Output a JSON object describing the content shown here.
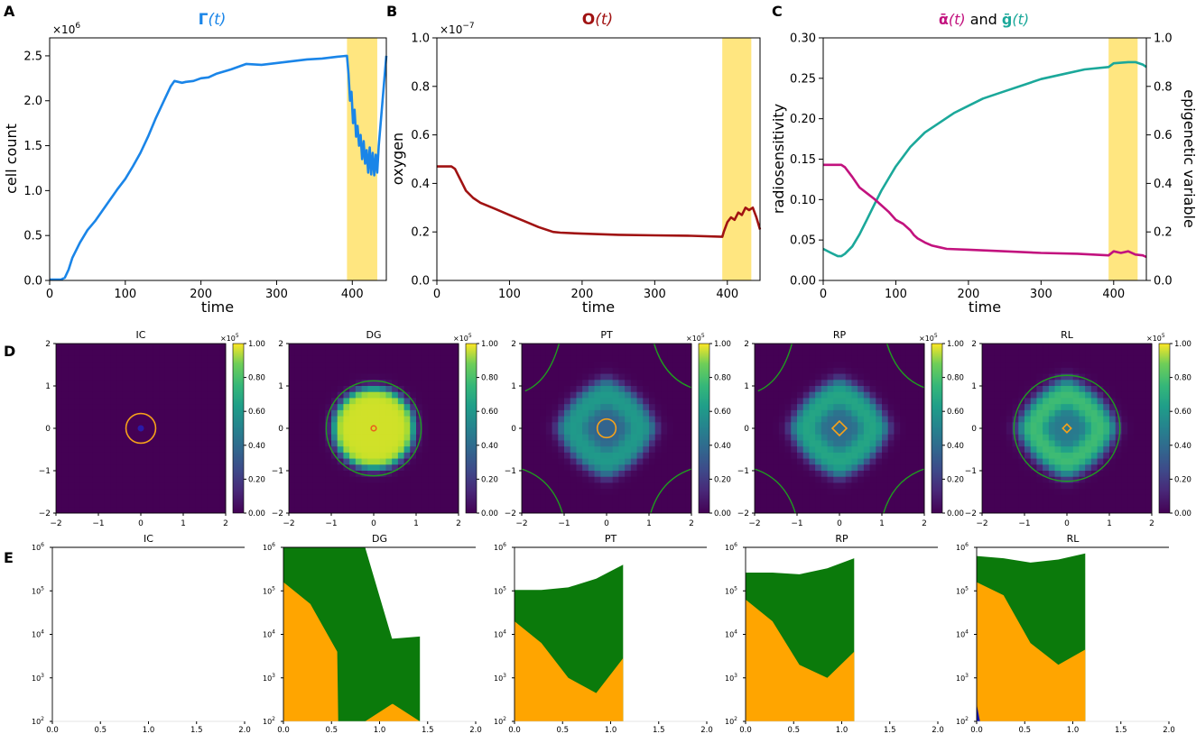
{
  "colors": {
    "gamma": "#1a85e8",
    "oxygen": "#a01212",
    "alpha": "#c2127e",
    "g": "#1ba89a",
    "shade": "#ffe680",
    "contour_orange": "#f7a21a",
    "contour_green": "#1f9e1f",
    "area_orange": "#ffa500",
    "area_green": "#0b7a0b",
    "area_blue": "#1414b4"
  },
  "chart_data": [
    {
      "panel": "A",
      "type": "line",
      "title_main": "Γ",
      "title_arg": "(t)",
      "xlabel": "time",
      "ylabel": "cell count",
      "offset_base": "×10",
      "offset_exp": "6",
      "xlim": [
        0,
        445
      ],
      "ylim": [
        0,
        2.7
      ],
      "xticks": [
        0,
        100,
        200,
        300,
        400
      ],
      "yticks": [
        "0.0",
        "0.5",
        "1.0",
        "1.5",
        "2.0",
        "2.5"
      ],
      "shade": [
        393,
        433
      ],
      "series": [
        {
          "name": "Γ(t)",
          "x": [
            0,
            15,
            20,
            25,
            30,
            40,
            50,
            60,
            70,
            80,
            90,
            100,
            110,
            120,
            130,
            140,
            150,
            160,
            165,
            170,
            175,
            180,
            190,
            200,
            210,
            220,
            240,
            260,
            280,
            300,
            320,
            340,
            360,
            380,
            393,
            395,
            397,
            399,
            401,
            403,
            405,
            407,
            409,
            411,
            413,
            415,
            417,
            419,
            421,
            423,
            425,
            427,
            429,
            431,
            433,
            435,
            437,
            440,
            445
          ],
          "y": [
            0.01,
            0.01,
            0.03,
            0.12,
            0.25,
            0.42,
            0.56,
            0.66,
            0.78,
            0.9,
            1.02,
            1.13,
            1.27,
            1.42,
            1.6,
            1.8,
            1.98,
            2.16,
            2.22,
            2.21,
            2.2,
            2.21,
            2.22,
            2.25,
            2.26,
            2.3,
            2.35,
            2.41,
            2.4,
            2.42,
            2.44,
            2.46,
            2.47,
            2.49,
            2.5,
            2.3,
            2.0,
            2.1,
            1.75,
            1.9,
            1.6,
            1.72,
            1.5,
            1.62,
            1.35,
            1.55,
            1.3,
            1.45,
            1.2,
            1.48,
            1.18,
            1.42,
            1.17,
            1.4,
            1.2,
            1.5,
            1.7,
            2.0,
            2.5
          ]
        }
      ]
    },
    {
      "panel": "B",
      "type": "line",
      "title_main": "O",
      "title_arg": "(t)",
      "xlabel": "time",
      "ylabel": "oxygen",
      "offset_base": "×10",
      "offset_exp": "−7",
      "xlim": [
        0,
        445
      ],
      "ylim": [
        0,
        1.0
      ],
      "xticks": [
        0,
        100,
        200,
        300,
        400
      ],
      "yticks": [
        "0.0",
        "0.2",
        "0.4",
        "0.6",
        "0.8",
        "1.0"
      ],
      "shade": [
        393,
        433
      ],
      "series": [
        {
          "name": "O(t)",
          "x": [
            0,
            20,
            25,
            30,
            35,
            40,
            50,
            60,
            80,
            100,
            120,
            140,
            160,
            170,
            200,
            250,
            300,
            350,
            393,
            395,
            400,
            405,
            410,
            415,
            420,
            425,
            430,
            435,
            440,
            445
          ],
          "y": [
            0.47,
            0.47,
            0.46,
            0.43,
            0.4,
            0.37,
            0.34,
            0.32,
            0.295,
            0.27,
            0.245,
            0.22,
            0.2,
            0.197,
            0.193,
            0.188,
            0.186,
            0.184,
            0.18,
            0.2,
            0.24,
            0.26,
            0.25,
            0.28,
            0.27,
            0.3,
            0.29,
            0.3,
            0.26,
            0.21
          ]
        }
      ]
    },
    {
      "panel": "C",
      "type": "line",
      "title_a": "ᾱ",
      "title_mid": "(t) and ",
      "title_b": "ḡ",
      "title_end": "(t)",
      "xlabel": "time",
      "ylabel": "radiosensitivity",
      "y2label": "epigenetic variable",
      "xlim": [
        0,
        445
      ],
      "ylim": [
        0,
        0.3
      ],
      "y2lim": [
        0,
        1.0
      ],
      "xticks": [
        0,
        100,
        200,
        300,
        400
      ],
      "yticks": [
        "0.00",
        "0.05",
        "0.10",
        "0.15",
        "0.20",
        "0.25",
        "0.30"
      ],
      "y2ticks": [
        "0.0",
        "0.2",
        "0.4",
        "0.6",
        "0.8",
        "1.0"
      ],
      "shade": [
        393,
        433
      ],
      "series": [
        {
          "name": "ᾱ(t)",
          "axis": "left",
          "x": [
            0,
            20,
            25,
            30,
            40,
            50,
            60,
            70,
            80,
            90,
            100,
            110,
            120,
            125,
            130,
            140,
            150,
            160,
            170,
            200,
            250,
            300,
            350,
            393,
            400,
            410,
            420,
            430,
            440,
            445
          ],
          "y": [
            0.143,
            0.143,
            0.143,
            0.14,
            0.128,
            0.115,
            0.108,
            0.101,
            0.093,
            0.085,
            0.075,
            0.07,
            0.062,
            0.056,
            0.052,
            0.047,
            0.043,
            0.041,
            0.039,
            0.038,
            0.036,
            0.034,
            0.033,
            0.031,
            0.036,
            0.034,
            0.036,
            0.032,
            0.031,
            0.029
          ]
        },
        {
          "name": "ḡ(t)",
          "axis": "right",
          "x": [
            0,
            10,
            20,
            25,
            30,
            40,
            50,
            60,
            70,
            80,
            90,
            100,
            120,
            140,
            160,
            180,
            200,
            220,
            250,
            280,
            300,
            330,
            360,
            393,
            400,
            420,
            430,
            440,
            445
          ],
          "y": [
            0.13,
            0.115,
            0.1,
            0.1,
            0.11,
            0.14,
            0.19,
            0.25,
            0.31,
            0.37,
            0.42,
            0.47,
            0.55,
            0.61,
            0.65,
            0.69,
            0.72,
            0.75,
            0.78,
            0.81,
            0.83,
            0.85,
            0.87,
            0.88,
            0.895,
            0.9,
            0.9,
            0.89,
            0.88
          ]
        }
      ]
    },
    {
      "panel": "D",
      "type": "heatmap",
      "xlim": [
        -2,
        2
      ],
      "ylim": [
        -2,
        2
      ],
      "xticks": [
        "−2",
        "−1",
        "0",
        "1",
        "2"
      ],
      "yticks": [
        "−2",
        "−1",
        "0",
        "1",
        "2"
      ],
      "colorbar_ticks": [
        "0.00",
        "0.20",
        "0.40",
        "0.60",
        "0.80",
        "1.00"
      ],
      "colorbar_offset_base": "×10",
      "colorbar_offset_exp": "5",
      "maps": [
        {
          "title": "IC",
          "profile": "ic",
          "orange_r": 0.35,
          "green_r": 0
        },
        {
          "title": "DG",
          "profile": "dg",
          "orange_r": 0.06,
          "green_r": 1.12
        },
        {
          "title": "PT",
          "profile": "ring",
          "orange_r": 0.22,
          "green_r": 0,
          "level": 0.55,
          "corner_green": true
        },
        {
          "title": "RP",
          "profile": "ring",
          "orange_r": 0.17,
          "green_r": 0,
          "level": 0.6,
          "corner_green": true
        },
        {
          "title": "RL",
          "profile": "ring",
          "orange_r": 0.1,
          "green_r": 1.25,
          "level": 0.7,
          "corner_green": false
        }
      ]
    },
    {
      "panel": "E",
      "type": "area",
      "xlim": [
        0,
        2
      ],
      "ylim_log10": [
        2,
        6
      ],
      "xticks": [
        "0.0",
        "0.5",
        "1.0",
        "1.5",
        "2.0"
      ],
      "ytick_base": "10",
      "ytick_exps": [
        "2",
        "3",
        "4",
        "5",
        "6"
      ],
      "charts": [
        {
          "title": "IC",
          "x": [],
          "orange": [],
          "green": []
        },
        {
          "title": "DG",
          "x": [
            0,
            0.28,
            0.56,
            0.57,
            0.85,
            1.13,
            1.14,
            1.42
          ],
          "orange": [
            5.2,
            4.7,
            3.6,
            2,
            2,
            2.4,
            2.4,
            2
          ],
          "green": [
            6,
            6,
            6,
            6,
            6,
            3.9,
            3.9,
            3.95
          ]
        },
        {
          "title": "PT",
          "x": [
            0,
            0.28,
            0.56,
            0.85,
            1.13
          ],
          "orange": [
            4.3,
            3.8,
            3.0,
            2.65,
            3.45
          ],
          "green": [
            5.02,
            5.02,
            5.08,
            5.28,
            5.6
          ]
        },
        {
          "title": "RP",
          "x": [
            0,
            0.28,
            0.56,
            0.85,
            1.13
          ],
          "orange": [
            4.8,
            4.3,
            3.3,
            3.0,
            3.6
          ],
          "green": [
            5.42,
            5.42,
            5.38,
            5.52,
            5.75
          ]
        },
        {
          "title": "RL",
          "x": [
            0,
            0.28,
            0.56,
            0.85,
            1.13
          ],
          "orange": [
            5.2,
            4.9,
            3.8,
            3.3,
            3.65
          ],
          "green": [
            5.8,
            5.75,
            5.65,
            5.72,
            5.86
          ],
          "blue_peak": 2.4
        }
      ]
    }
  ]
}
